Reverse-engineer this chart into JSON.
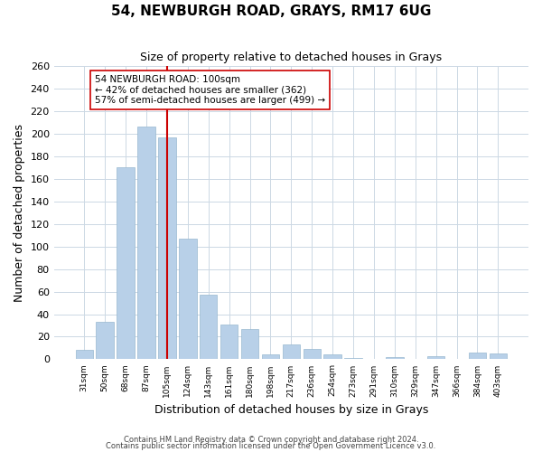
{
  "title": "54, NEWBURGH ROAD, GRAYS, RM17 6UG",
  "subtitle": "Size of property relative to detached houses in Grays",
  "xlabel": "Distribution of detached houses by size in Grays",
  "ylabel": "Number of detached properties",
  "categories": [
    "31sqm",
    "50sqm",
    "68sqm",
    "87sqm",
    "105sqm",
    "124sqm",
    "143sqm",
    "161sqm",
    "180sqm",
    "198sqm",
    "217sqm",
    "236sqm",
    "254sqm",
    "273sqm",
    "291sqm",
    "310sqm",
    "329sqm",
    "347sqm",
    "366sqm",
    "384sqm",
    "403sqm"
  ],
  "values": [
    8,
    33,
    170,
    206,
    197,
    107,
    57,
    31,
    27,
    4,
    13,
    9,
    4,
    1,
    0,
    2,
    0,
    3,
    0,
    6,
    5
  ],
  "bar_color": "#b8d0e8",
  "bar_edge_color": "#98b8d0",
  "vline_x_index": 4,
  "vline_color": "#cc0000",
  "annotation_title": "54 NEWBURGH ROAD: 100sqm",
  "annotation_line1": "← 42% of detached houses are smaller (362)",
  "annotation_line2": "57% of semi-detached houses are larger (499) →",
  "annotation_box_color": "#ffffff",
  "annotation_box_edge": "#cc0000",
  "ylim": [
    0,
    260
  ],
  "yticks": [
    0,
    20,
    40,
    60,
    80,
    100,
    120,
    140,
    160,
    180,
    200,
    220,
    240,
    260
  ],
  "footer1": "Contains HM Land Registry data © Crown copyright and database right 2024.",
  "footer2": "Contains public sector information licensed under the Open Government Licence v3.0.",
  "background_color": "#ffffff",
  "grid_color": "#ccd8e4"
}
